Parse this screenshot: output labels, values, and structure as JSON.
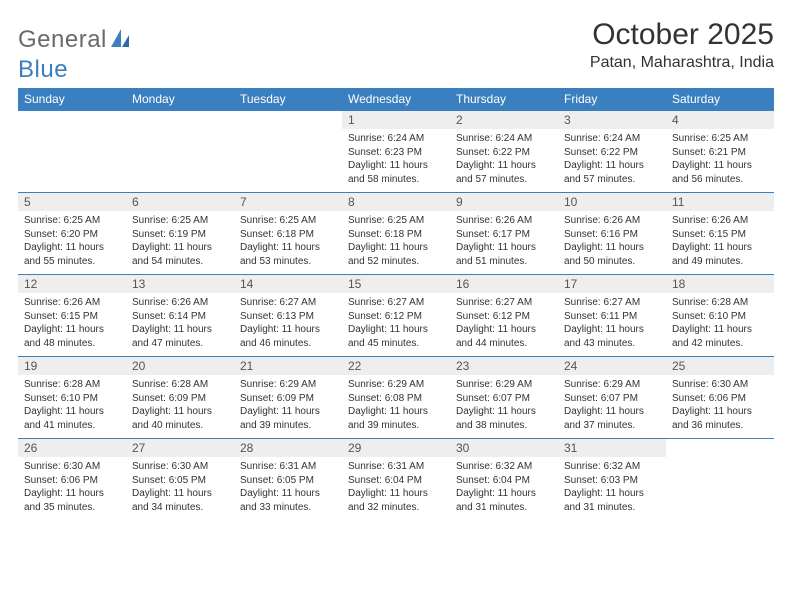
{
  "brand": {
    "name_a": "General",
    "name_b": "Blue"
  },
  "title": "October 2025",
  "location": "Patan, Maharashtra, India",
  "colors": {
    "header_bg": "#3a7fbf",
    "header_text": "#ffffff",
    "daynum_bg": "#eeeeee",
    "row_border": "#3a7fbf",
    "page_bg": "#ffffff",
    "body_text": "#333333",
    "logo_gray": "#6a6a6a",
    "logo_blue": "#3a7fbf"
  },
  "layout": {
    "columns": 7,
    "rows": 5,
    "title_fontsize": 30,
    "location_fontsize": 16,
    "header_fontsize": 12,
    "daynum_fontsize": 12,
    "info_fontsize": 10
  },
  "day_headers": [
    "Sunday",
    "Monday",
    "Tuesday",
    "Wednesday",
    "Thursday",
    "Friday",
    "Saturday"
  ],
  "weeks": [
    [
      {
        "n": "",
        "lines": []
      },
      {
        "n": "",
        "lines": []
      },
      {
        "n": "",
        "lines": []
      },
      {
        "n": "1",
        "lines": [
          "Sunrise: 6:24 AM",
          "Sunset: 6:23 PM",
          "Daylight: 11 hours",
          "and 58 minutes."
        ]
      },
      {
        "n": "2",
        "lines": [
          "Sunrise: 6:24 AM",
          "Sunset: 6:22 PM",
          "Daylight: 11 hours",
          "and 57 minutes."
        ]
      },
      {
        "n": "3",
        "lines": [
          "Sunrise: 6:24 AM",
          "Sunset: 6:22 PM",
          "Daylight: 11 hours",
          "and 57 minutes."
        ]
      },
      {
        "n": "4",
        "lines": [
          "Sunrise: 6:25 AM",
          "Sunset: 6:21 PM",
          "Daylight: 11 hours",
          "and 56 minutes."
        ]
      }
    ],
    [
      {
        "n": "5",
        "lines": [
          "Sunrise: 6:25 AM",
          "Sunset: 6:20 PM",
          "Daylight: 11 hours",
          "and 55 minutes."
        ]
      },
      {
        "n": "6",
        "lines": [
          "Sunrise: 6:25 AM",
          "Sunset: 6:19 PM",
          "Daylight: 11 hours",
          "and 54 minutes."
        ]
      },
      {
        "n": "7",
        "lines": [
          "Sunrise: 6:25 AM",
          "Sunset: 6:18 PM",
          "Daylight: 11 hours",
          "and 53 minutes."
        ]
      },
      {
        "n": "8",
        "lines": [
          "Sunrise: 6:25 AM",
          "Sunset: 6:18 PM",
          "Daylight: 11 hours",
          "and 52 minutes."
        ]
      },
      {
        "n": "9",
        "lines": [
          "Sunrise: 6:26 AM",
          "Sunset: 6:17 PM",
          "Daylight: 11 hours",
          "and 51 minutes."
        ]
      },
      {
        "n": "10",
        "lines": [
          "Sunrise: 6:26 AM",
          "Sunset: 6:16 PM",
          "Daylight: 11 hours",
          "and 50 minutes."
        ]
      },
      {
        "n": "11",
        "lines": [
          "Sunrise: 6:26 AM",
          "Sunset: 6:15 PM",
          "Daylight: 11 hours",
          "and 49 minutes."
        ]
      }
    ],
    [
      {
        "n": "12",
        "lines": [
          "Sunrise: 6:26 AM",
          "Sunset: 6:15 PM",
          "Daylight: 11 hours",
          "and 48 minutes."
        ]
      },
      {
        "n": "13",
        "lines": [
          "Sunrise: 6:26 AM",
          "Sunset: 6:14 PM",
          "Daylight: 11 hours",
          "and 47 minutes."
        ]
      },
      {
        "n": "14",
        "lines": [
          "Sunrise: 6:27 AM",
          "Sunset: 6:13 PM",
          "Daylight: 11 hours",
          "and 46 minutes."
        ]
      },
      {
        "n": "15",
        "lines": [
          "Sunrise: 6:27 AM",
          "Sunset: 6:12 PM",
          "Daylight: 11 hours",
          "and 45 minutes."
        ]
      },
      {
        "n": "16",
        "lines": [
          "Sunrise: 6:27 AM",
          "Sunset: 6:12 PM",
          "Daylight: 11 hours",
          "and 44 minutes."
        ]
      },
      {
        "n": "17",
        "lines": [
          "Sunrise: 6:27 AM",
          "Sunset: 6:11 PM",
          "Daylight: 11 hours",
          "and 43 minutes."
        ]
      },
      {
        "n": "18",
        "lines": [
          "Sunrise: 6:28 AM",
          "Sunset: 6:10 PM",
          "Daylight: 11 hours",
          "and 42 minutes."
        ]
      }
    ],
    [
      {
        "n": "19",
        "lines": [
          "Sunrise: 6:28 AM",
          "Sunset: 6:10 PM",
          "Daylight: 11 hours",
          "and 41 minutes."
        ]
      },
      {
        "n": "20",
        "lines": [
          "Sunrise: 6:28 AM",
          "Sunset: 6:09 PM",
          "Daylight: 11 hours",
          "and 40 minutes."
        ]
      },
      {
        "n": "21",
        "lines": [
          "Sunrise: 6:29 AM",
          "Sunset: 6:09 PM",
          "Daylight: 11 hours",
          "and 39 minutes."
        ]
      },
      {
        "n": "22",
        "lines": [
          "Sunrise: 6:29 AM",
          "Sunset: 6:08 PM",
          "Daylight: 11 hours",
          "and 39 minutes."
        ]
      },
      {
        "n": "23",
        "lines": [
          "Sunrise: 6:29 AM",
          "Sunset: 6:07 PM",
          "Daylight: 11 hours",
          "and 38 minutes."
        ]
      },
      {
        "n": "24",
        "lines": [
          "Sunrise: 6:29 AM",
          "Sunset: 6:07 PM",
          "Daylight: 11 hours",
          "and 37 minutes."
        ]
      },
      {
        "n": "25",
        "lines": [
          "Sunrise: 6:30 AM",
          "Sunset: 6:06 PM",
          "Daylight: 11 hours",
          "and 36 minutes."
        ]
      }
    ],
    [
      {
        "n": "26",
        "lines": [
          "Sunrise: 6:30 AM",
          "Sunset: 6:06 PM",
          "Daylight: 11 hours",
          "and 35 minutes."
        ]
      },
      {
        "n": "27",
        "lines": [
          "Sunrise: 6:30 AM",
          "Sunset: 6:05 PM",
          "Daylight: 11 hours",
          "and 34 minutes."
        ]
      },
      {
        "n": "28",
        "lines": [
          "Sunrise: 6:31 AM",
          "Sunset: 6:05 PM",
          "Daylight: 11 hours",
          "and 33 minutes."
        ]
      },
      {
        "n": "29",
        "lines": [
          "Sunrise: 6:31 AM",
          "Sunset: 6:04 PM",
          "Daylight: 11 hours",
          "and 32 minutes."
        ]
      },
      {
        "n": "30",
        "lines": [
          "Sunrise: 6:32 AM",
          "Sunset: 6:04 PM",
          "Daylight: 11 hours",
          "and 31 minutes."
        ]
      },
      {
        "n": "31",
        "lines": [
          "Sunrise: 6:32 AM",
          "Sunset: 6:03 PM",
          "Daylight: 11 hours",
          "and 31 minutes."
        ]
      },
      {
        "n": "",
        "lines": []
      }
    ]
  ]
}
